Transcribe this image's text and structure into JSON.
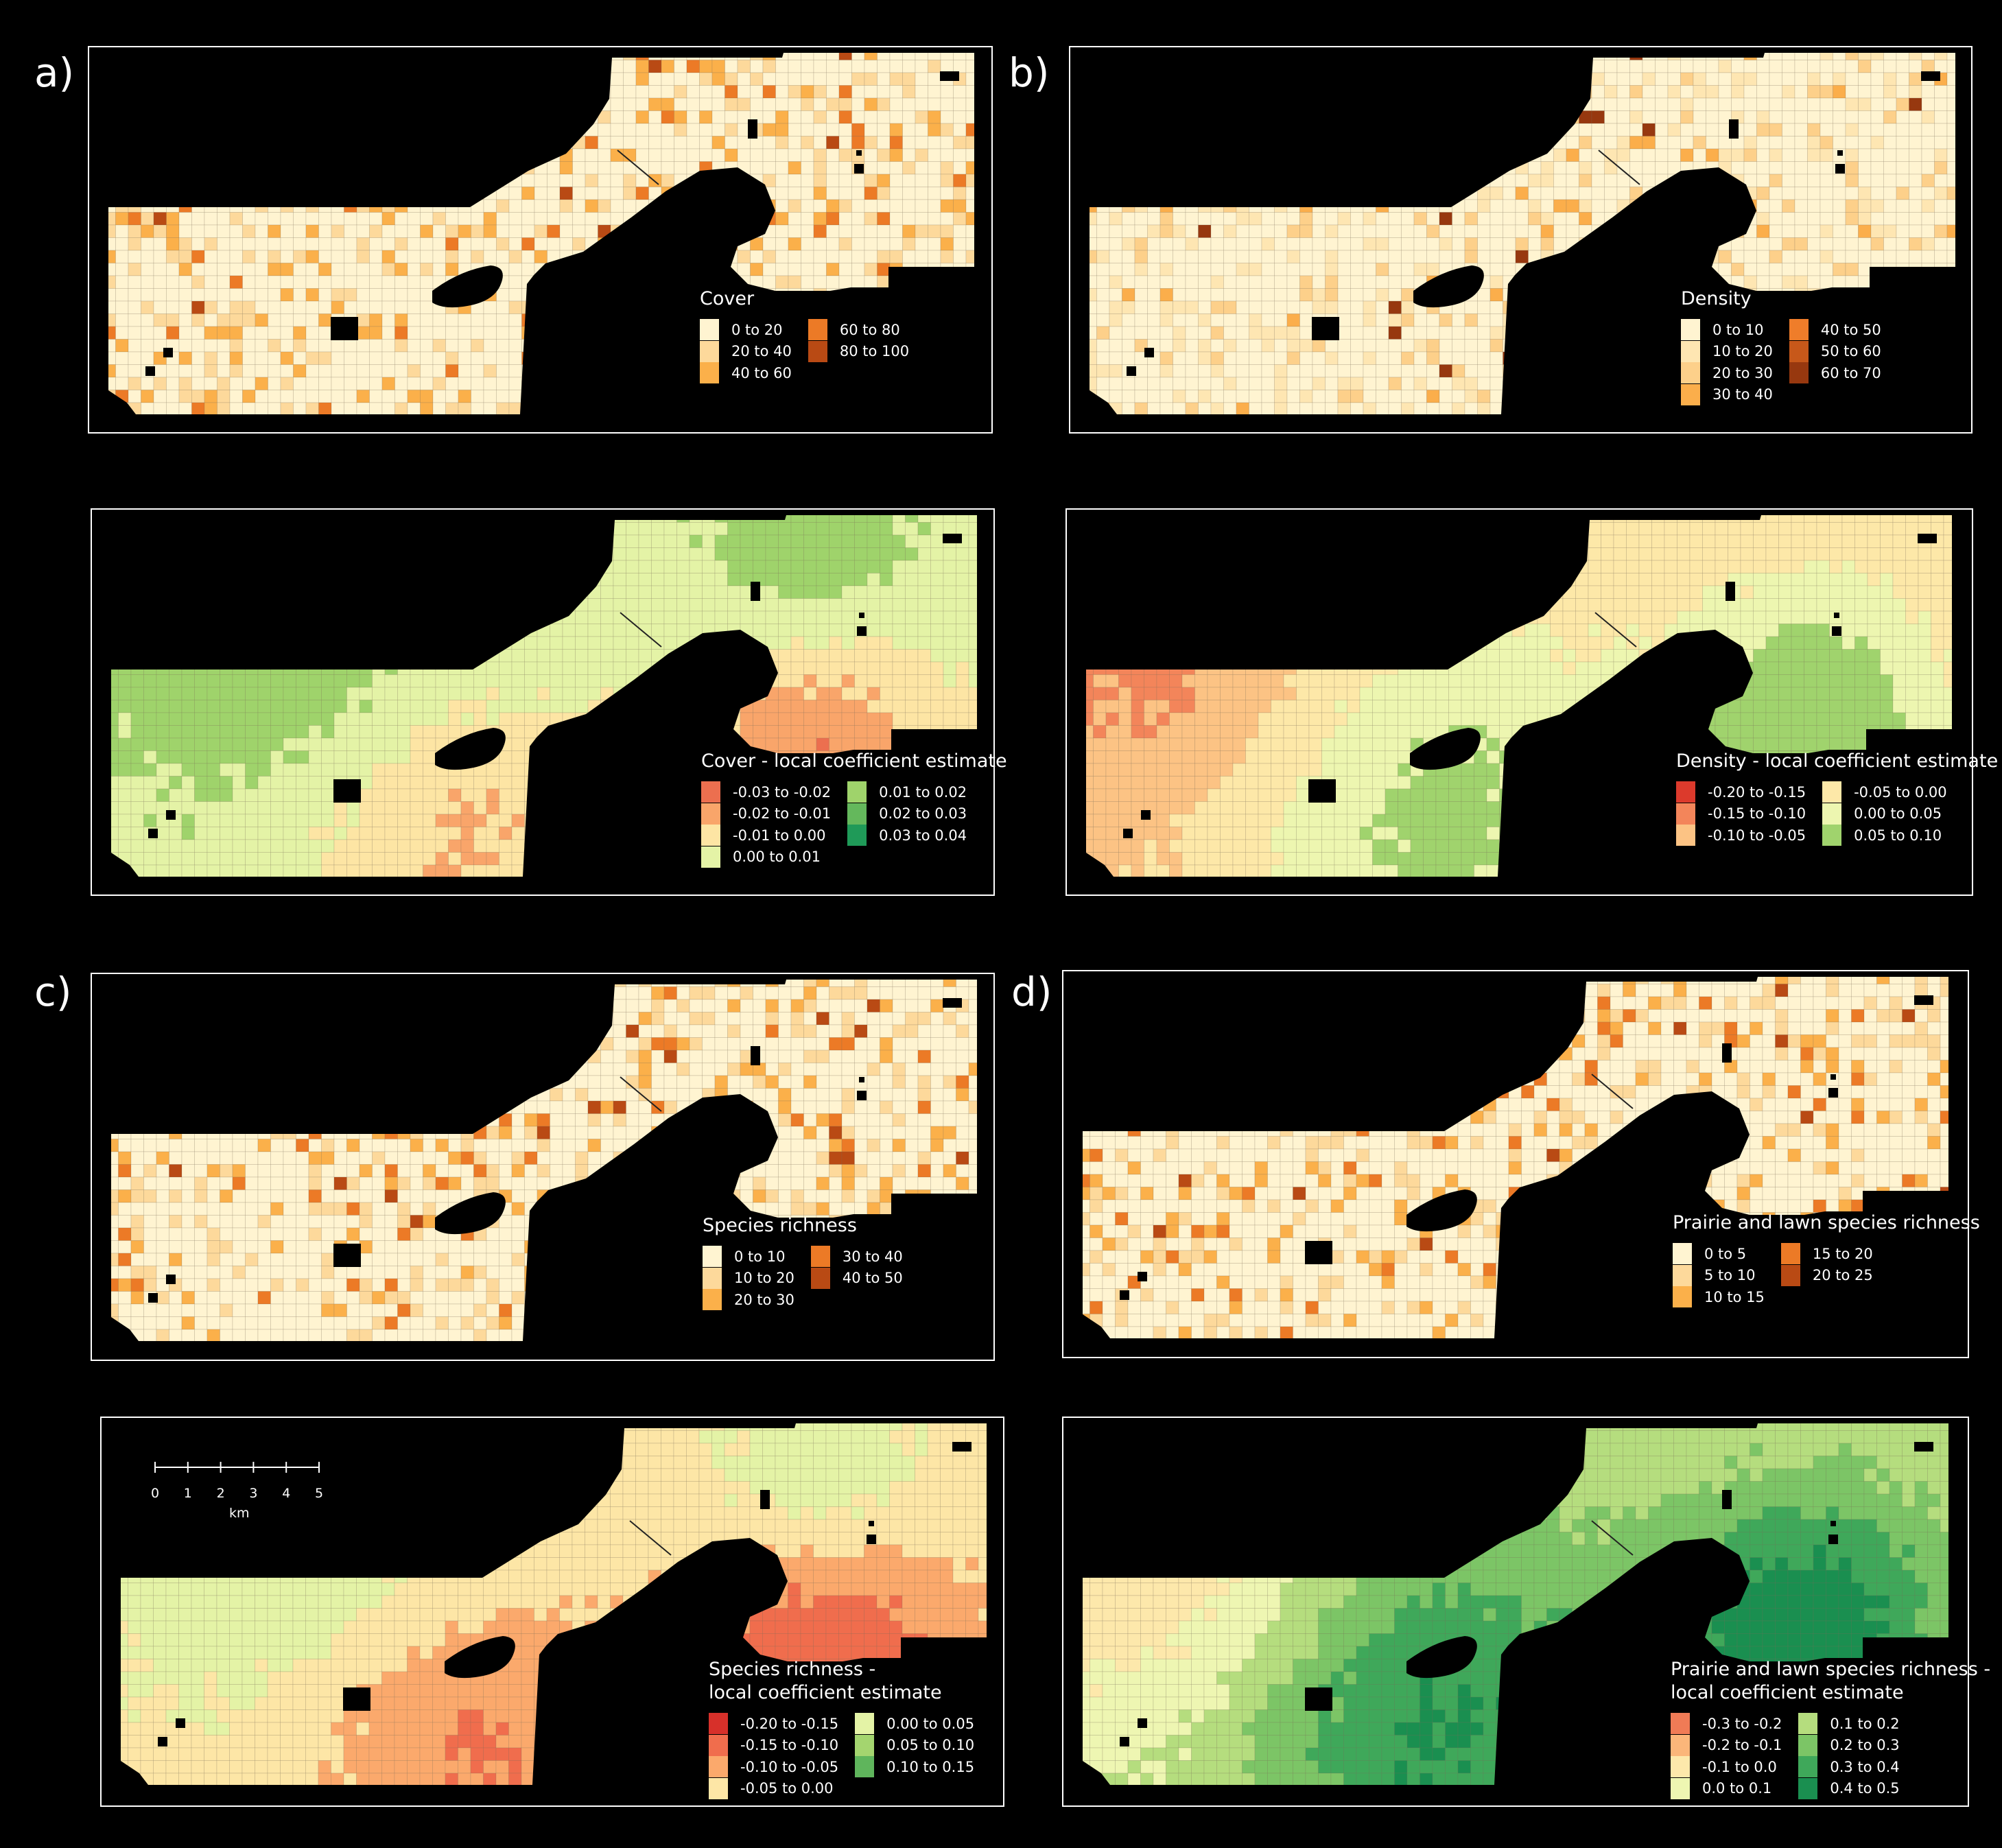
{
  "panel_labels": [
    "a)",
    "b)",
    "c)",
    "d)"
  ],
  "maps": [
    {
      "id": "a-top",
      "legend_title": [
        "Cover"
      ],
      "variable": "Cover",
      "scheme": "sequential",
      "classes": [
        {
          "label": "0 to 20",
          "color": "#fff4d1"
        },
        {
          "label": "20 to 40",
          "color": "#fdd99b"
        },
        {
          "label": "40 to 60",
          "color": "#fbb04a"
        },
        {
          "label": "60 to 80",
          "color": "#ec7a26"
        },
        {
          "label": "80 to 100",
          "color": "#b94a14"
        }
      ],
      "legend_split": 3
    },
    {
      "id": "b-top",
      "legend_title": [
        "Density"
      ],
      "variable": "Density",
      "scheme": "sequential",
      "classes": [
        {
          "label": "0 to 10",
          "color": "#fff4d1"
        },
        {
          "label": "10 to 20",
          "color": "#fee6b2"
        },
        {
          "label": "20 to 30",
          "color": "#fdd08a"
        },
        {
          "label": "30 to 40",
          "color": "#fbae4b"
        },
        {
          "label": "40 to 50",
          "color": "#ef7d2a"
        },
        {
          "label": "50 to 60",
          "color": "#c7581a"
        },
        {
          "label": "60 to 70",
          "color": "#97380f"
        }
      ],
      "legend_split": 4
    },
    {
      "id": "a-bottom",
      "legend_title": [
        "Cover - local coefficient estimate"
      ],
      "variable": "Cover coefficient",
      "scheme": "diverging",
      "classes": [
        {
          "label": "-0.03 to -0.02",
          "color": "#ec6f4f"
        },
        {
          "label": "-0.02 to -0.01",
          "color": "#f9a56a"
        },
        {
          "label": "-0.01 to 0.00",
          "color": "#fde5a4"
        },
        {
          "label": "0.00 to 0.01",
          "color": "#e4f3a6"
        },
        {
          "label": "0.01 to 0.02",
          "color": "#9fd36b"
        },
        {
          "label": "0.02 to 0.03",
          "color": "#64b85c"
        },
        {
          "label": "0.03 to 0.04",
          "color": "#1f9a58"
        }
      ],
      "legend_split": 4
    },
    {
      "id": "b-bottom",
      "legend_title": [
        "Density - local coefficient estimate"
      ],
      "variable": "Density coefficient",
      "scheme": "diverging",
      "classes": [
        {
          "label": "-0.20 to -0.15",
          "color": "#dc3a2c"
        },
        {
          "label": "-0.15 to -0.10",
          "color": "#f3855a"
        },
        {
          "label": "-0.10 to -0.05",
          "color": "#fcc384"
        },
        {
          "label": "-0.05 to 0.00",
          "color": "#fde8a8"
        },
        {
          "label": "0.00 to 0.05",
          "color": "#edf6b0"
        },
        {
          "label": "0.05 to 0.10",
          "color": "#a0d36d"
        }
      ],
      "legend_split": 3
    },
    {
      "id": "c-top",
      "legend_title": [
        "Species richness"
      ],
      "variable": "Species richness",
      "scheme": "sequential",
      "classes": [
        {
          "label": "0 to 10",
          "color": "#fff4d1"
        },
        {
          "label": "10 to 20",
          "color": "#fdd99b"
        },
        {
          "label": "20 to 30",
          "color": "#fbb04a"
        },
        {
          "label": "30 to 40",
          "color": "#ec7a26"
        },
        {
          "label": "40 to 50",
          "color": "#b94a14"
        }
      ],
      "legend_split": 3
    },
    {
      "id": "d-top",
      "legend_title": [
        "Prairie and lawn species richness"
      ],
      "variable": "Prairie and lawn species richness",
      "scheme": "sequential",
      "classes": [
        {
          "label": "0 to 5",
          "color": "#fff4d1"
        },
        {
          "label": "5 to 10",
          "color": "#fdd99b"
        },
        {
          "label": "10 to 15",
          "color": "#fbb04a"
        },
        {
          "label": "15 to 20",
          "color": "#ec7a26"
        },
        {
          "label": "20 to 25",
          "color": "#b94a14"
        }
      ],
      "legend_split": 3
    },
    {
      "id": "c-bottom",
      "legend_title": [
        "Species richness -",
        "local coefficient estimate"
      ],
      "variable": "Species richness coefficient",
      "scheme": "diverging",
      "classes": [
        {
          "label": "-0.20 to -0.15",
          "color": "#d7302a"
        },
        {
          "label": "-0.15 to -0.10",
          "color": "#f06d4d"
        },
        {
          "label": "-0.10 to -0.05",
          "color": "#fba96c"
        },
        {
          "label": "-0.05 to 0.00",
          "color": "#fde6a6"
        },
        {
          "label": "0.00 to 0.05",
          "color": "#e4f3a6"
        },
        {
          "label": "0.05 to 0.10",
          "color": "#a4d56f"
        },
        {
          "label": "0.10 to 0.15",
          "color": "#5fb55c"
        }
      ],
      "legend_split": 4
    },
    {
      "id": "d-bottom",
      "legend_title": [
        "Prairie and lawn species richness -",
        "local coefficient estimate"
      ],
      "variable": "Prairie and lawn species richness coefficient",
      "scheme": "diverging",
      "classes": [
        {
          "label": "-0.3 to -0.2",
          "color": "#f07b56"
        },
        {
          "label": "-0.2 to -0.1",
          "color": "#fbb67a"
        },
        {
          "label": "-0.1 to 0.0",
          "color": "#fde8ab"
        },
        {
          "label": "0.0 to 0.1",
          "color": "#eef6b2"
        },
        {
          "label": "0.1 to 0.2",
          "color": "#b5dd7e"
        },
        {
          "label": "0.2 to 0.3",
          "color": "#7cc566"
        },
        {
          "label": "0.3 to 0.4",
          "color": "#3fa85a"
        },
        {
          "label": "0.4 to 0.5",
          "color": "#1a8f50"
        }
      ],
      "legend_split": 4
    }
  ],
  "scalebar": {
    "ticks": [
      "0",
      "1",
      "2",
      "3",
      "4",
      "5"
    ],
    "unit": "km"
  }
}
